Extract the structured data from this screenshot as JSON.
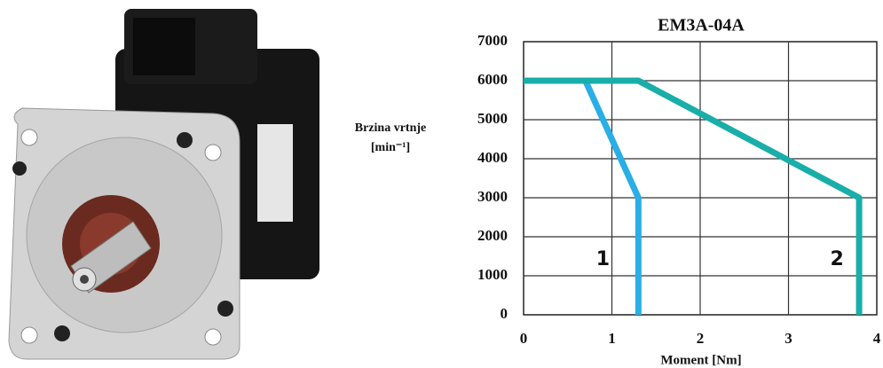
{
  "chart_data": {
    "type": "line",
    "title": "EM3A-04A",
    "y_label": [
      "Brzina vrtnje",
      "[min⁻¹]"
    ],
    "x_label": "Moment [Nm]",
    "series": [
      {
        "name": "1",
        "color": "#2aaee6",
        "x": [
          0,
          0.7,
          1.3,
          1.3
        ],
        "values": [
          6000,
          6000,
          3000,
          0
        ]
      },
      {
        "name": "2",
        "color": "#19aea9",
        "x": [
          0,
          1.3,
          3.8,
          3.8
        ],
        "values": [
          6000,
          6000,
          3000,
          0
        ]
      }
    ],
    "xlim": [
      0,
      4
    ],
    "xticks": [
      0,
      1,
      2,
      3,
      4
    ],
    "ylim": [
      0,
      7000
    ],
    "yticks": [
      0,
      1000,
      2000,
      3000,
      4000,
      5000,
      6000,
      7000
    ],
    "grid": true
  }
}
